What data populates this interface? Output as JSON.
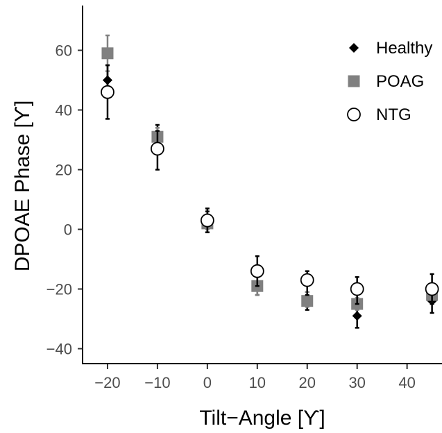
{
  "chart_data": {
    "type": "scatter",
    "title": "",
    "xlabel": "Tilt−Angle [ϒ]",
    "ylabel": "DPOAE Phase [ϒ]",
    "xlim": [
      -25,
      47
    ],
    "ylim": [
      -45,
      75
    ],
    "xticks": [
      -20,
      -10,
      0,
      10,
      20,
      30,
      40
    ],
    "xtick_labels": [
      "−20",
      "−10",
      "0",
      "10",
      "20",
      "30",
      "40"
    ],
    "yticks": [
      -40,
      -20,
      0,
      20,
      40,
      60
    ],
    "ytick_labels": [
      "−40",
      "−20",
      "0",
      "20",
      "40",
      "60"
    ],
    "grid": false,
    "legend_position": "top-right",
    "error_bars": true,
    "series": [
      {
        "name": "Healthy",
        "marker": "diamond",
        "color": "#000000",
        "points": [
          {
            "x": -20,
            "y": 50,
            "lo": 45,
            "hi": 55
          },
          {
            "x": -10,
            "y": 31,
            "lo": 28,
            "hi": 35
          },
          {
            "x": 0,
            "y": 2,
            "lo": -1,
            "hi": 6
          },
          {
            "x": 10,
            "y": -19,
            "lo": -22,
            "hi": -16
          },
          {
            "x": 20,
            "y": -24,
            "lo": -27,
            "hi": -21
          },
          {
            "x": 30,
            "y": -29,
            "lo": -33,
            "hi": -26
          },
          {
            "x": 45,
            "y": -24,
            "lo": -28,
            "hi": -20
          }
        ]
      },
      {
        "name": "POAG",
        "marker": "square",
        "color": "#808080",
        "points": [
          {
            "x": -20,
            "y": 59,
            "lo": 53,
            "hi": 65
          },
          {
            "x": -10,
            "y": 31,
            "lo": 29,
            "hi": 34
          },
          {
            "x": 0,
            "y": 2,
            "lo": 0,
            "hi": 5
          },
          {
            "x": 10,
            "y": -19,
            "lo": -22,
            "hi": -16
          },
          {
            "x": 20,
            "y": -24,
            "lo": -26,
            "hi": -21
          },
          {
            "x": 30,
            "y": -25,
            "lo": -27,
            "hi": -23
          },
          {
            "x": 45,
            "y": -22,
            "lo": -25,
            "hi": -19
          }
        ]
      },
      {
        "name": "NTG",
        "marker": "circle-open",
        "color": "#000000",
        "points": [
          {
            "x": -20,
            "y": 46,
            "lo": 37,
            "hi": 55
          },
          {
            "x": -10,
            "y": 27,
            "lo": 20,
            "hi": 33
          },
          {
            "x": 0,
            "y": 3,
            "lo": -1,
            "hi": 7
          },
          {
            "x": 10,
            "y": -14,
            "lo": -19,
            "hi": -9
          },
          {
            "x": 20,
            "y": -17,
            "lo": -22,
            "hi": -14
          },
          {
            "x": 30,
            "y": -20,
            "lo": -25,
            "hi": -16
          },
          {
            "x": 45,
            "y": -20,
            "lo": -25,
            "hi": -15
          }
        ]
      }
    ]
  }
}
